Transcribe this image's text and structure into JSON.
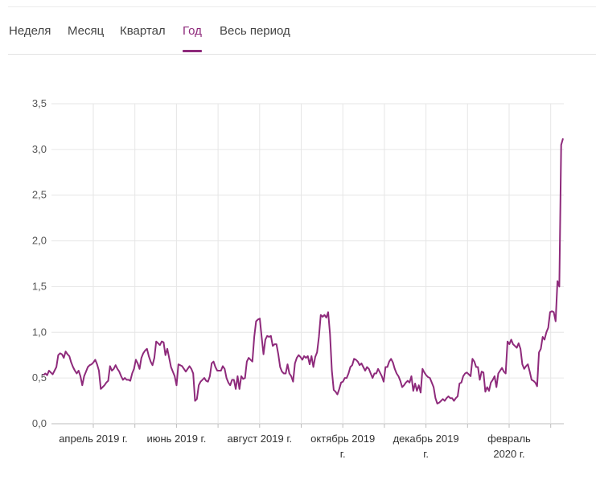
{
  "tabs": [
    {
      "label": "Неделя",
      "active": false
    },
    {
      "label": "Месяц",
      "active": false
    },
    {
      "label": "Квартал",
      "active": false
    },
    {
      "label": "Год",
      "active": true
    },
    {
      "label": "Весь период",
      "active": false
    }
  ],
  "colors": {
    "accent": "#8e2a7b",
    "line": "#8e2a7b",
    "grid": "#e6e6e6"
  },
  "chart_data": {
    "type": "line",
    "title": "",
    "xlabel": "",
    "ylabel": "",
    "ylim": [
      0,
      3.5
    ],
    "y_ticks": [
      "0,0",
      "0,5",
      "1,0",
      "1,5",
      "2,0",
      "2,5",
      "3,0",
      "3,5"
    ],
    "x_ticks": [
      {
        "line1": "апрель 2019 г.",
        "line2": ""
      },
      {
        "line1": "июнь 2019 г.",
        "line2": ""
      },
      {
        "line1": "август 2019 г.",
        "line2": ""
      },
      {
        "line1": "октябрь 2019",
        "line2": "г."
      },
      {
        "line1": "декабрь 2019",
        "line2": "г."
      },
      {
        "line1": "февраль",
        "line2": "2020 г."
      }
    ],
    "grid": true,
    "series": [
      {
        "values": [
          0.53,
          0.55,
          0.53,
          0.58,
          0.56,
          0.54,
          0.58,
          0.62,
          0.75,
          0.77,
          0.76,
          0.72,
          0.79,
          0.76,
          0.74,
          0.67,
          0.62,
          0.58,
          0.55,
          0.58,
          0.52,
          0.42,
          0.52,
          0.57,
          0.62,
          0.64,
          0.65,
          0.67,
          0.7,
          0.65,
          0.58,
          0.38,
          0.4,
          0.42,
          0.45,
          0.47,
          0.63,
          0.58,
          0.6,
          0.64,
          0.6,
          0.57,
          0.52,
          0.48,
          0.5,
          0.48,
          0.48,
          0.47,
          0.55,
          0.6,
          0.7,
          0.66,
          0.6,
          0.72,
          0.77,
          0.8,
          0.82,
          0.74,
          0.68,
          0.64,
          0.72,
          0.9,
          0.88,
          0.86,
          0.9,
          0.89,
          0.75,
          0.82,
          0.72,
          0.62,
          0.57,
          0.52,
          0.42,
          0.65,
          0.64,
          0.63,
          0.6,
          0.57,
          0.6,
          0.63,
          0.6,
          0.55,
          0.25,
          0.27,
          0.42,
          0.46,
          0.48,
          0.5,
          0.47,
          0.46,
          0.52,
          0.66,
          0.68,
          0.62,
          0.58,
          0.58,
          0.58,
          0.63,
          0.6,
          0.5,
          0.45,
          0.42,
          0.48,
          0.48,
          0.38,
          0.52,
          0.38,
          0.52,
          0.49,
          0.5,
          0.68,
          0.72,
          0.7,
          0.68,
          0.95,
          1.12,
          1.14,
          1.15,
          0.95,
          0.76,
          0.92,
          0.96,
          0.95,
          0.96,
          0.85,
          0.87,
          0.87,
          0.76,
          0.62,
          0.57,
          0.55,
          0.55,
          0.65,
          0.55,
          0.52,
          0.46,
          0.66,
          0.72,
          0.75,
          0.73,
          0.7,
          0.74,
          0.72,
          0.74,
          0.65,
          0.74,
          0.62,
          0.73,
          0.78,
          0.95,
          1.19,
          1.17,
          1.19,
          1.16,
          1.22,
          0.98,
          0.58,
          0.37,
          0.35,
          0.32,
          0.38,
          0.45,
          0.46,
          0.5,
          0.5,
          0.55,
          0.62,
          0.64,
          0.71,
          0.7,
          0.68,
          0.64,
          0.66,
          0.62,
          0.58,
          0.62,
          0.6,
          0.55,
          0.5,
          0.55,
          0.55,
          0.6,
          0.56,
          0.52,
          0.46,
          0.62,
          0.62,
          0.68,
          0.71,
          0.67,
          0.6,
          0.55,
          0.52,
          0.47,
          0.4,
          0.42,
          0.45,
          0.47,
          0.45,
          0.52,
          0.36,
          0.44,
          0.36,
          0.42,
          0.34,
          0.6,
          0.56,
          0.53,
          0.51,
          0.5,
          0.45,
          0.4,
          0.28,
          0.22,
          0.23,
          0.25,
          0.27,
          0.25,
          0.28,
          0.3,
          0.28,
          0.28,
          0.25,
          0.28,
          0.3,
          0.44,
          0.45,
          0.52,
          0.55,
          0.56,
          0.54,
          0.52,
          0.71,
          0.68,
          0.62,
          0.62,
          0.48,
          0.57,
          0.56,
          0.35,
          0.4,
          0.36,
          0.45,
          0.48,
          0.52,
          0.4,
          0.55,
          0.58,
          0.61,
          0.57,
          0.55,
          0.9,
          0.87,
          0.92,
          0.87,
          0.85,
          0.83,
          0.88,
          0.82,
          0.65,
          0.6,
          0.63,
          0.65,
          0.57,
          0.48,
          0.47,
          0.45,
          0.41,
          0.78,
          0.82,
          0.95,
          0.92,
          1.0,
          1.05,
          1.22,
          1.23,
          1.22,
          1.12,
          1.56,
          1.5,
          3.05,
          3.12
        ]
      }
    ]
  }
}
